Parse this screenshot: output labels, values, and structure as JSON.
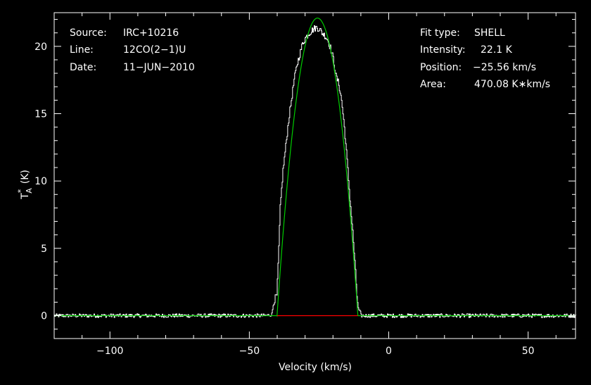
{
  "chart_data": {
    "type": "line",
    "xlabel": "Velocity (km/s)",
    "ylabel": "T",
    "ylabel_sub": "A",
    "ylabel_sup": "*",
    "ylabel_unit": "(K)",
    "xlim": [
      -120,
      67
    ],
    "ylim": [
      -1.7,
      22.5
    ],
    "xticks": [
      -100,
      -50,
      0,
      50
    ],
    "xtick_labels": [
      "−100",
      "−50",
      "0",
      "50"
    ],
    "yticks": [
      0,
      5,
      10,
      15,
      20
    ],
    "ytick_labels": [
      "0",
      "5",
      "10",
      "15",
      "20"
    ],
    "info_left": [
      {
        "key": "Source:",
        "value": "IRC+10216"
      },
      {
        "key": "Line:",
        "value": "12CO(2−1)U"
      },
      {
        "key": "Date:",
        "value": "11−JUN−2010"
      }
    ],
    "info_right": [
      {
        "key": "Fit type:",
        "value": "SHELL"
      },
      {
        "key": "Intensity:",
        "value": "22.1 K"
      },
      {
        "key": "Position:",
        "value": "−25.56 km/s"
      },
      {
        "key": "Area:",
        "value": "470.08 K∗km/s"
      }
    ],
    "fit": {
      "center": -25.56,
      "halfwidth": 14.5,
      "peak": 22.1,
      "baseline_range": [
        -40.06,
        -11.06
      ]
    },
    "observed_profile": [
      [
        -44,
        0.0
      ],
      [
        -42,
        0.1
      ],
      [
        -41.5,
        0.8
      ],
      [
        -40.8,
        1.3
      ],
      [
        -40.2,
        1.5
      ],
      [
        -39.6,
        4.5
      ],
      [
        -39.0,
        8.0
      ],
      [
        -38.0,
        10.8
      ],
      [
        -37.0,
        12.6
      ],
      [
        -36.0,
        14.5
      ],
      [
        -35.0,
        16.0
      ],
      [
        -34.0,
        17.5
      ],
      [
        -33.0,
        18.6
      ],
      [
        -32.0,
        19.4
      ],
      [
        -31.0,
        20.2
      ],
      [
        -30.0,
        20.6
      ],
      [
        -29.0,
        20.9
      ],
      [
        -28.0,
        21.1
      ],
      [
        -27.0,
        21.3
      ],
      [
        -26.0,
        21.4
      ],
      [
        -25.0,
        21.3
      ],
      [
        -24.0,
        21.0
      ],
      [
        -23.0,
        20.8
      ],
      [
        -22.0,
        20.5
      ],
      [
        -21.0,
        19.9
      ],
      [
        -20.0,
        19.1
      ],
      [
        -19.0,
        17.8
      ],
      [
        -18.0,
        17.2
      ],
      [
        -17.0,
        16.0
      ],
      [
        -16.0,
        14.0
      ],
      [
        -15.0,
        11.5
      ],
      [
        -14.0,
        8.7
      ],
      [
        -13.0,
        6.2
      ],
      [
        -12.0,
        3.2
      ],
      [
        -11.5,
        1.5
      ],
      [
        -11.0,
        0.5
      ],
      [
        -10.0,
        0.1
      ]
    ],
    "colors": {
      "background": "#000000",
      "axes": "#ffffff",
      "spectrum": "#ffffff",
      "fit": "#00cc00",
      "fit_baseline": "#ff0000"
    }
  }
}
